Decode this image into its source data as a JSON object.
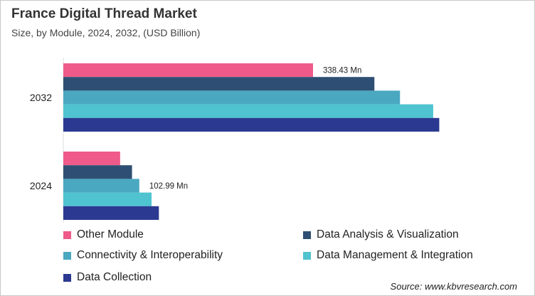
{
  "chart_data": {
    "type": "bar",
    "orientation": "horizontal",
    "title": "France Digital Thread Market",
    "subtitle": "Size, by Module, 2024, 2032, (USD Billion)",
    "categories": [
      "2032",
      "2024"
    ],
    "series": [
      {
        "name": "Other Module",
        "color": "#ef5a8a",
        "values": [
          338.43,
          77.0
        ]
      },
      {
        "name": "Data Analysis & Visualization",
        "color": "#2e4f73",
        "values": [
          421.6,
          93.1
        ]
      },
      {
        "name": "Connectivity & Interoperability",
        "color": "#4aa8c0",
        "values": [
          456.3,
          102.99
        ]
      },
      {
        "name": "Data Management & Integration",
        "color": "#4fc3d0",
        "values": [
          501.3,
          119.6
        ]
      },
      {
        "name": "Data Collection",
        "color": "#2b3990",
        "values": [
          509.5,
          129.5
        ]
      }
    ],
    "data_labels": [
      {
        "category": "2032",
        "series": "Other Module",
        "text": "338.43 Mn"
      },
      {
        "category": "2024",
        "series": "Connectivity & Interoperability",
        "text": "102.99 Mn"
      }
    ],
    "grid": false,
    "legend_position": "bottom",
    "source": "Source: www.kbvresearch.com"
  }
}
